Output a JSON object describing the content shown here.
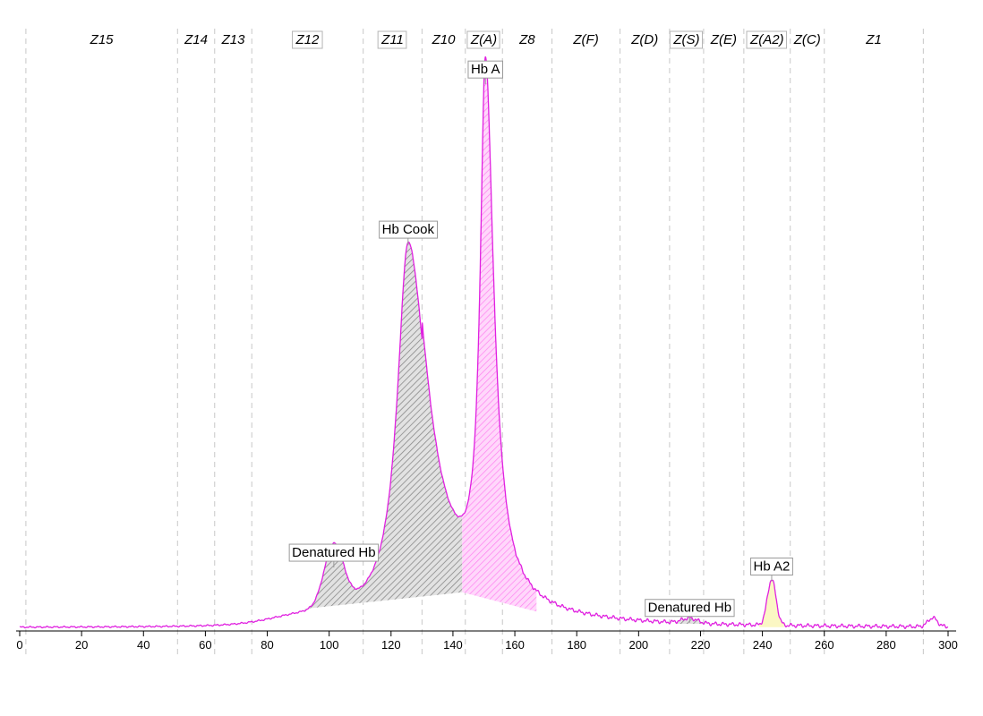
{
  "chart_data": {
    "type": "line",
    "xlim": [
      0,
      300
    ],
    "ylim": [
      0,
      100
    ],
    "x_ticks": [
      0,
      20,
      40,
      60,
      80,
      100,
      120,
      140,
      160,
      180,
      200,
      220,
      240,
      260,
      280,
      300
    ],
    "grid": false,
    "colors": {
      "trace": "#e020e0",
      "hatch_gray": "#8a8a8a",
      "fill_gray": "#e2e2e2",
      "fill_pink": "#ffd7fb",
      "hatch_pink": "#ff7ff0",
      "fill_yellow": "#fbf7c4",
      "boundary": "#c8c8c8"
    },
    "zones": [
      {
        "label": "Z15",
        "start": 2,
        "end": 51,
        "boxed": false
      },
      {
        "label": "Z14",
        "start": 51,
        "end": 63,
        "boxed": false
      },
      {
        "label": "Z13",
        "start": 63,
        "end": 75,
        "boxed": false
      },
      {
        "label": "Z12",
        "start": 75,
        "end": 111,
        "boxed": true
      },
      {
        "label": "Z11",
        "start": 111,
        "end": 130,
        "boxed": true
      },
      {
        "label": "Z10",
        "start": 130,
        "end": 144,
        "boxed": false
      },
      {
        "label": "Z(A)",
        "start": 144,
        "end": 156,
        "boxed": true
      },
      {
        "label": "Z8",
        "start": 156,
        "end": 172,
        "boxed": false
      },
      {
        "label": "Z(F)",
        "start": 172,
        "end": 194,
        "boxed": false
      },
      {
        "label": "Z(D)",
        "start": 194,
        "end": 210,
        "boxed": false
      },
      {
        "label": "Z(S)",
        "start": 210,
        "end": 221,
        "boxed": true
      },
      {
        "label": "Z(E)",
        "start": 221,
        "end": 234,
        "boxed": false
      },
      {
        "label": "Z(A2)",
        "start": 234,
        "end": 249,
        "boxed": true
      },
      {
        "label": "Z(C)",
        "start": 249,
        "end": 260,
        "boxed": false
      },
      {
        "label": "Z1",
        "start": 260,
        "end": 292,
        "boxed": false
      }
    ],
    "peaks": [
      {
        "label": "Denatured Hb",
        "x": 101.5,
        "height": 11.5
      },
      {
        "label": "Hb Cook",
        "x": 125.5,
        "height": 70
      },
      {
        "label": "Hb A",
        "x": 150.5,
        "height": 99
      },
      {
        "label": "Denatured Hb",
        "x": 216.5,
        "height": 1.5
      },
      {
        "label": "Hb A2",
        "x": 243,
        "height": 9
      }
    ]
  }
}
